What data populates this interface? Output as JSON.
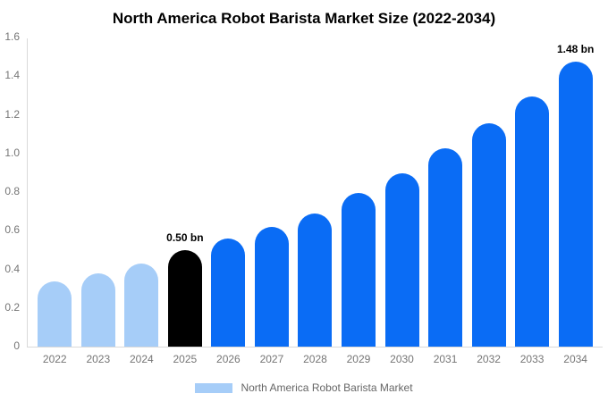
{
  "title": "North America Robot Barista Market Size (2022-2034)",
  "chart_data": {
    "type": "bar",
    "title": "North America Robot Barista Market Size (2022-2034)",
    "categories": [
      "2022",
      "2023",
      "2024",
      "2025",
      "2026",
      "2027",
      "2028",
      "2029",
      "2030",
      "2031",
      "2032",
      "2033",
      "2034"
    ],
    "values": [
      0.34,
      0.38,
      0.43,
      0.5,
      0.56,
      0.62,
      0.69,
      0.8,
      0.9,
      1.03,
      1.16,
      1.3,
      1.48
    ],
    "bar_colors": [
      "#a6cdf8",
      "#a6cdf8",
      "#a6cdf8",
      "#000000",
      "#0a6cf5",
      "#0a6cf5",
      "#0a6cf5",
      "#0a6cf5",
      "#0a6cf5",
      "#0a6cf5",
      "#0a6cf5",
      "#0a6cf5",
      "#0a6cf5"
    ],
    "annotations": {
      "2025": "0.50 bn",
      "2034": "1.48 bn"
    },
    "xlabel": "",
    "ylabel": "",
    "ylim": [
      0,
      1.6
    ],
    "yticks": [
      0,
      0.2,
      0.4,
      0.6,
      0.8,
      1.0,
      1.2,
      1.4,
      1.6
    ],
    "ytick_labels": [
      "0",
      "0.2",
      "0.4",
      "0.6",
      "0.8",
      "1.0",
      "1.2",
      "1.4",
      "1.6"
    ],
    "grid": false,
    "legend_position": "bottom",
    "legend": [
      "North America Robot Barista Market"
    ]
  },
  "legend": {
    "label": "North America Robot Barista Market",
    "swatch_color": "#a6cdf8"
  },
  "colors": {
    "historical_bar": "#a6cdf8",
    "highlight_bar": "#000000",
    "forecast_bar": "#0a6cf5",
    "axis_line": "#d9d9d9",
    "tick_text": "#757575",
    "legend_text": "#666666",
    "title_text": "#000000",
    "background": "#ffffff"
  }
}
